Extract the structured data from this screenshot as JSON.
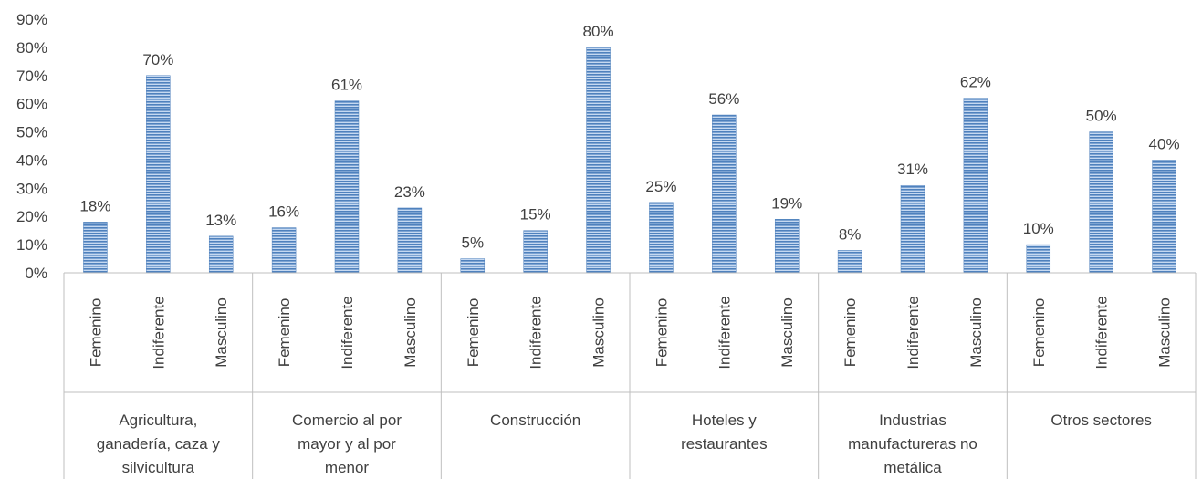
{
  "chart_data": {
    "type": "bar",
    "groups": [
      {
        "label": [
          "Agricultura,",
          "ganadería, caza y",
          "silvicultura"
        ],
        "categories": [
          "Femenino",
          "Indiferente",
          "Masculino"
        ],
        "values": [
          18,
          70,
          13
        ],
        "value_labels": [
          "18%",
          "70%",
          "13%"
        ]
      },
      {
        "label": [
          "Comercio al por",
          "mayor y al por",
          "menor"
        ],
        "categories": [
          "Femenino",
          "Indiferente",
          "Masculino"
        ],
        "values": [
          16,
          61,
          23
        ],
        "value_labels": [
          "16%",
          "61%",
          "23%"
        ]
      },
      {
        "label": [
          "Construcción"
        ],
        "categories": [
          "Femenino",
          "Indiferente",
          "Masculino"
        ],
        "values": [
          5,
          15,
          80
        ],
        "value_labels": [
          "5%",
          "15%",
          "80%"
        ]
      },
      {
        "label": [
          "Hoteles y",
          "restaurantes"
        ],
        "categories": [
          "Femenino",
          "Indiferente",
          "Masculino"
        ],
        "values": [
          25,
          56,
          19
        ],
        "value_labels": [
          "25%",
          "56%",
          "19%"
        ]
      },
      {
        "label": [
          "Industrias",
          "manufactureras no",
          "metálica"
        ],
        "categories": [
          "Femenino",
          "Indiferente",
          "Masculino"
        ],
        "values": [
          8,
          31,
          62
        ],
        "value_labels": [
          "8%",
          "31%",
          "62%"
        ]
      },
      {
        "label": [
          "Otros sectores"
        ],
        "categories": [
          "Femenino",
          "Indiferente",
          "Masculino"
        ],
        "values": [
          10,
          50,
          40
        ],
        "value_labels": [
          "10%",
          "50%",
          "40%"
        ]
      }
    ],
    "y_ticks": [
      "0%",
      "10%",
      "20%",
      "30%",
      "40%",
      "50%",
      "60%",
      "70%",
      "80%",
      "90%"
    ],
    "ylim": [
      0,
      90
    ],
    "grid": false,
    "colors": {
      "bar": "#4f81bd",
      "bar_light": "#c6d9f1",
      "axis": "#bfbfbf",
      "text": "#404040"
    }
  }
}
